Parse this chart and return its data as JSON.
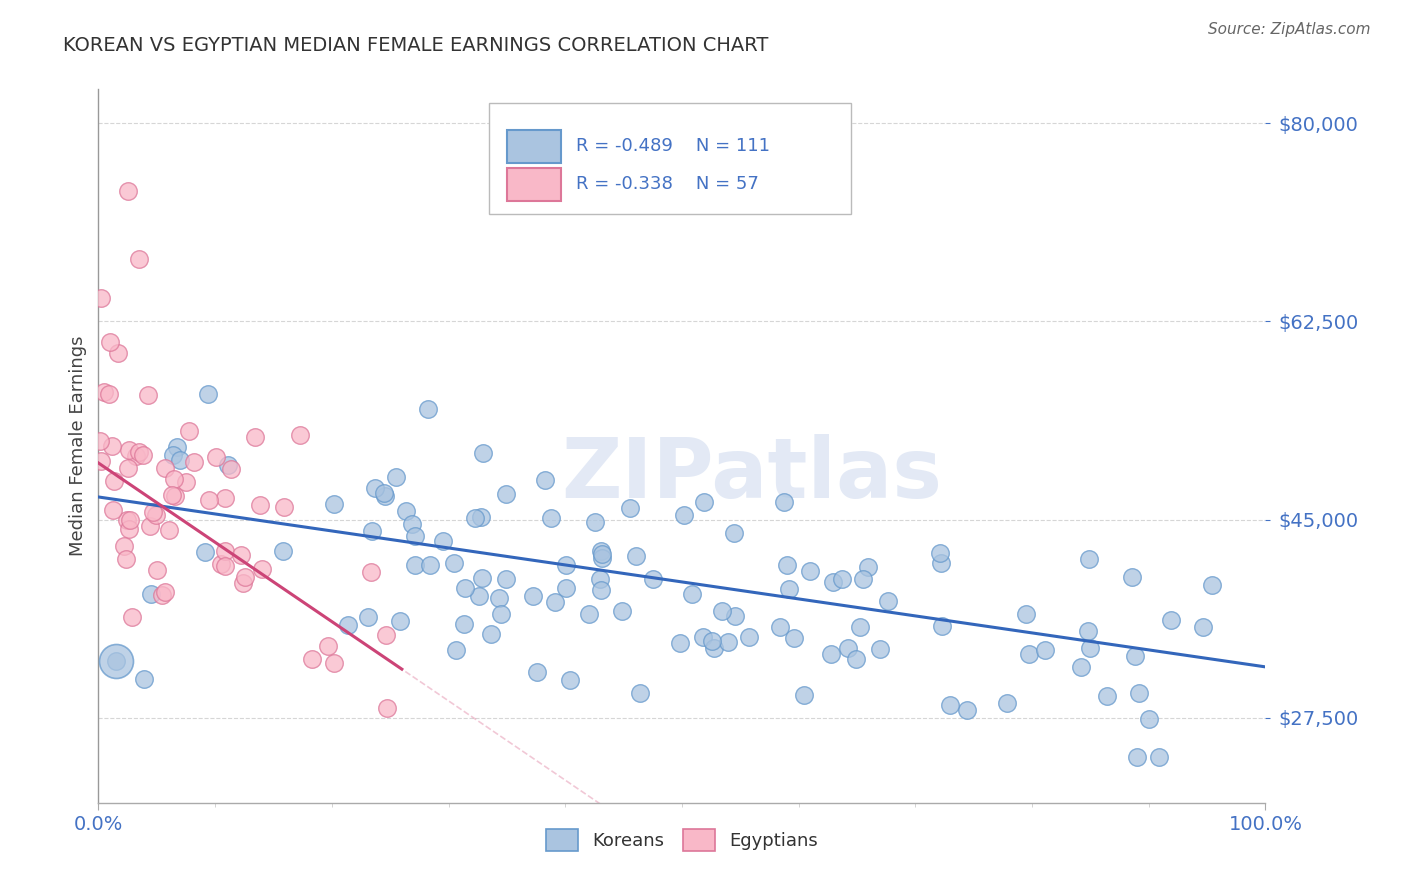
{
  "title": "KOREAN VS EGYPTIAN MEDIAN FEMALE EARNINGS CORRELATION CHART",
  "source_text": "Source: ZipAtlas.com",
  "ylabel": "Median Female Earnings",
  "watermark": "ZIPatlas",
  "xlim": [
    0.0,
    100.0
  ],
  "ylim": [
    20000,
    83000
  ],
  "yticks": [
    27500,
    45000,
    62500,
    80000
  ],
  "korean_R": -0.489,
  "korean_N": 111,
  "egyptian_R": -0.338,
  "egyptian_N": 57,
  "korean_marker_color": "#aac4e0",
  "korean_edge_color": "#6699cc",
  "korean_line_color": "#3366bb",
  "egyptian_marker_color": "#f9b8c8",
  "egyptian_edge_color": "#dd7799",
  "egyptian_line_color": "#cc4477",
  "title_color": "#333333",
  "axis_label_color": "#4472c4",
  "legend_text_color": "#4472c4",
  "background_color": "#ffffff",
  "grid_color": "#bbbbbb",
  "watermark_color": "#ccd8ee"
}
